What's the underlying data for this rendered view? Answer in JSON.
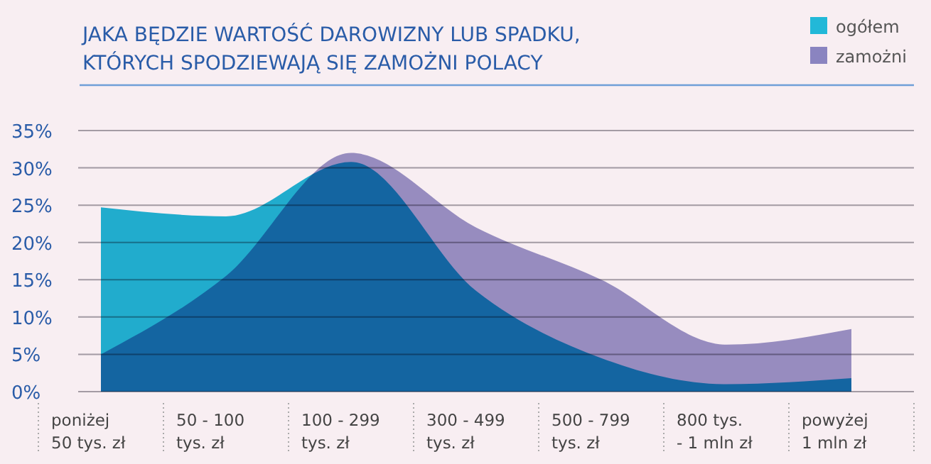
{
  "chart_data": {
    "type": "area",
    "title": "JAKA BĘDZIE WARTOŚĆ DAROWIZNY LUB SPADKU,\nKTÓRYCH SPODZIEWAJĄ SIĘ ZAMOŻNI POLACY",
    "categories": [
      "poniżej\n50 tys. zł",
      "50 - 100\ntys. zł",
      "100 - 299\ntys. zł",
      "300 - 499\ntys. zł",
      "500 - 799\ntys. zł",
      "800 tys.\n- 1 mln zł",
      "powyżej\n1 mln zł"
    ],
    "series": [
      {
        "name": "ogółem",
        "color": "#22b8d8",
        "values": [
          24.7,
          23.5,
          30.8,
          13.5,
          4.5,
          1,
          1.8
        ]
      },
      {
        "name": "zamożni",
        "color": "#8a84c0",
        "values": [
          5,
          15.5,
          32,
          22,
          15,
          6.3,
          8.4
        ]
      }
    ],
    "ylim": [
      0,
      35
    ],
    "yticks": [
      {
        "value": 0,
        "label": "0%"
      },
      {
        "value": 5,
        "label": "5%"
      },
      {
        "value": 10,
        "label": "10%"
      },
      {
        "value": 15,
        "label": "15%"
      },
      {
        "value": 20,
        "label": "20%"
      },
      {
        "value": 25,
        "label": "25%"
      },
      {
        "value": 30,
        "label": "30%"
      },
      {
        "value": 35,
        "label": "35%"
      }
    ],
    "grid": "y",
    "legend": "top right"
  }
}
